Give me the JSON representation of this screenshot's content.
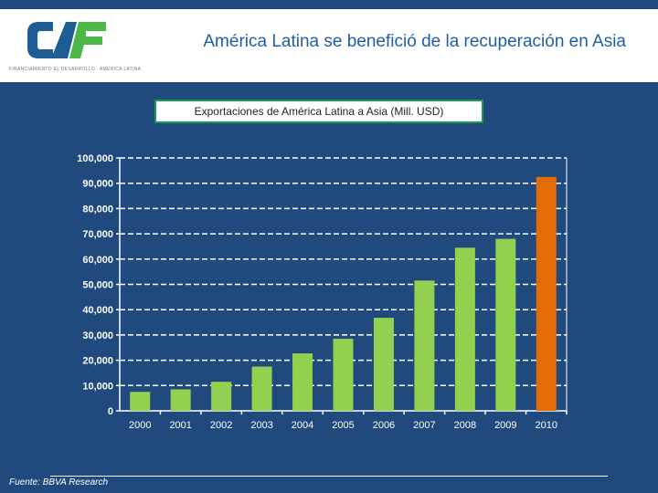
{
  "header": {
    "title": "América Latina se benefició de la recuperación en Asia",
    "logo_text": "CAF",
    "logo_tagline": "FINANCIAMIENTO EL DESARROLLO · AMÉRICA LATINA"
  },
  "colors": {
    "background": "#20497d",
    "bar": "#92d050",
    "highlight_bar": "#e36c09",
    "logo_blue": "#1d5c94",
    "logo_green": "#4cb848"
  },
  "chart_data": {
    "type": "bar",
    "title": "Exportaciones de América Latina a Asia (Mill. USD)",
    "xlabel": "",
    "ylabel": "",
    "categories": [
      "2000",
      "2001",
      "2002",
      "2003",
      "2004",
      "2005",
      "2006",
      "2007",
      "2008",
      "2009",
      "2010"
    ],
    "values": [
      7500,
      8500,
      11500,
      17500,
      22700,
      28500,
      36800,
      51500,
      64500,
      68000,
      92500
    ],
    "highlight": [
      "2010"
    ],
    "ylim": [
      0,
      100000
    ],
    "yticks": [
      "0",
      "10,000",
      "20,000",
      "30,000",
      "40,000",
      "50,000",
      "60,000",
      "70,000",
      "80,000",
      "90,000",
      "100,000"
    ],
    "grid": true,
    "grid_style": "dashed"
  },
  "footer": {
    "source": "Fuente: BBVA Research"
  }
}
